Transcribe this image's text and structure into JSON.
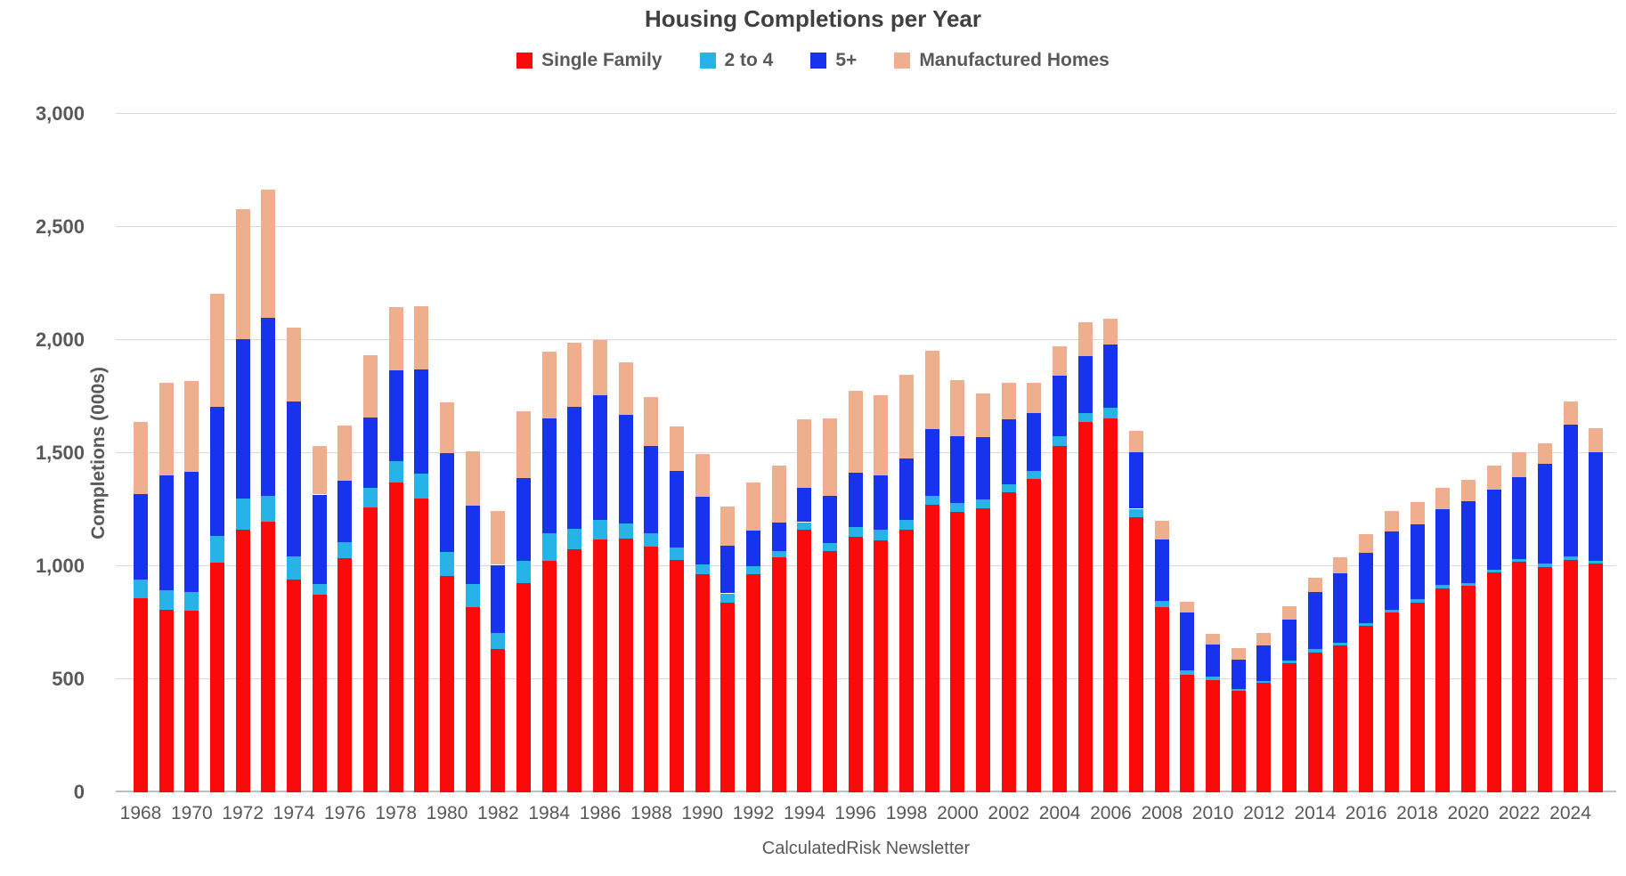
{
  "title": "Housing Completions per Year",
  "footer": "CalculatedRisk Newsletter",
  "y_axis": {
    "label": "Completions (000s)",
    "tick_labels": [
      "0",
      "500",
      "1,000",
      "1,500",
      "2,000",
      "2,500",
      "3,000"
    ]
  },
  "legend": [
    {
      "label": "Single Family",
      "color": "#fa0a0a"
    },
    {
      "label": "2 to 4",
      "color": "#27b2e8"
    },
    {
      "label": "5+",
      "color": "#1733ee"
    },
    {
      "label": "Manufactured Homes",
      "color": "#efae8e"
    }
  ],
  "colors": {
    "gridline": "#d9d9d9",
    "axis_line": "#bfbfbf",
    "text": "#595959",
    "title_text": "#404040",
    "background": "#ffffff"
  },
  "chart_data": {
    "type": "bar",
    "stacked": true,
    "title": "Housing Completions per Year",
    "xlabel": "",
    "ylabel": "Completions (000s)",
    "ylim": [
      0,
      3000
    ],
    "y_step": 500,
    "grid": true,
    "legend_position": "top",
    "source": "CalculatedRisk Newsletter",
    "categories": [
      1968,
      1969,
      1970,
      1971,
      1972,
      1973,
      1974,
      1975,
      1976,
      1977,
      1978,
      1979,
      1980,
      1981,
      1982,
      1983,
      1984,
      1985,
      1986,
      1987,
      1988,
      1989,
      1990,
      1991,
      1992,
      1993,
      1994,
      1995,
      1996,
      1997,
      1998,
      1999,
      2000,
      2001,
      2002,
      2003,
      2004,
      2005,
      2006,
      2007,
      2008,
      2009,
      2010,
      2011,
      2012,
      2013,
      2014,
      2015,
      2016,
      2017,
      2018,
      2019,
      2020,
      2021,
      2022,
      2023,
      2024,
      2025
    ],
    "x_tick_labels": [
      "1968",
      "1970",
      "1972",
      "1974",
      "1976",
      "1978",
      "1980",
      "1982",
      "1984",
      "1986",
      "1988",
      "1990",
      "1992",
      "1994",
      "1996",
      "1998",
      "2000",
      "2002",
      "2004",
      "2006",
      "2008",
      "2010",
      "2012",
      "2014",
      "2016",
      "2018",
      "2020",
      "2022",
      "2024"
    ],
    "units": "thousands of units",
    "series": [
      {
        "name": "Single Family",
        "color": "#fa0a0a",
        "values": [
          858,
          808,
          802,
          1014,
          1160,
          1197,
          940,
          875,
          1034,
          1258,
          1369,
          1301,
          957,
          819,
          632,
          924,
          1025,
          1073,
          1120,
          1123,
          1085,
          1026,
          966,
          838,
          964,
          1039,
          1160,
          1066,
          1129,
          1116,
          1160,
          1270,
          1242,
          1256,
          1325,
          1386,
          1532,
          1636,
          1655,
          1218,
          819,
          520,
          497,
          447,
          483,
          569,
          620,
          648,
          738,
          795,
          840,
          903,
          912,
          971,
          1019,
          998,
          1029,
          1010
        ]
      },
      {
        "name": "2 to 4",
        "color": "#27b2e8",
        "values": [
          84,
          85,
          85,
          120,
          141,
          113,
          104,
          45,
          72,
          87,
          96,
          110,
          105,
          103,
          74,
          100,
          122,
          94,
          84,
          65,
          59,
          55,
          43,
          42,
          36,
          29,
          35,
          37,
          45,
          45,
          43,
          41,
          38,
          39,
          38,
          37,
          42,
          43,
          46,
          36,
          29,
          19,
          14,
          11,
          11,
          13,
          14,
          12,
          12,
          12,
          14,
          14,
          13,
          13,
          13,
          15,
          15,
          15
        ]
      },
      {
        "name": "5+",
        "color": "#1733ee",
        "values": [
          378,
          507,
          531,
          572,
          703,
          790,
          684,
          397,
          271,
          312,
          403,
          460,
          440,
          344,
          300,
          366,
          505,
          537,
          552,
          481,
          386,
          341,
          299,
          211,
          158,
          124,
          152,
          210,
          239,
          240,
          272,
          294,
          294,
          276,
          285,
          256,
          268,
          252,
          278,
          249,
          272,
          255,
          141,
          127,
          155,
          182,
          250,
          308,
          310,
          346,
          331,
          334,
          364,
          353,
          360,
          440,
          583,
          480
        ]
      },
      {
        "name": "Manufactured Homes",
        "color": "#efae8e",
        "values": [
          318,
          413,
          401,
          497,
          576,
          567,
          329,
          213,
          246,
          277,
          276,
          277,
          222,
          241,
          240,
          296,
          295,
          284,
          244,
          233,
          218,
          198,
          188,
          171,
          211,
          254,
          304,
          340,
          363,
          354,
          373,
          348,
          250,
          193,
          165,
          131,
          131,
          147,
          117,
          96,
          82,
          50,
          50,
          52,
          55,
          60,
          64,
          71,
          81,
          93,
          97,
          95,
          94,
          106,
          113,
          89,
          103,
          105
        ]
      }
    ]
  }
}
